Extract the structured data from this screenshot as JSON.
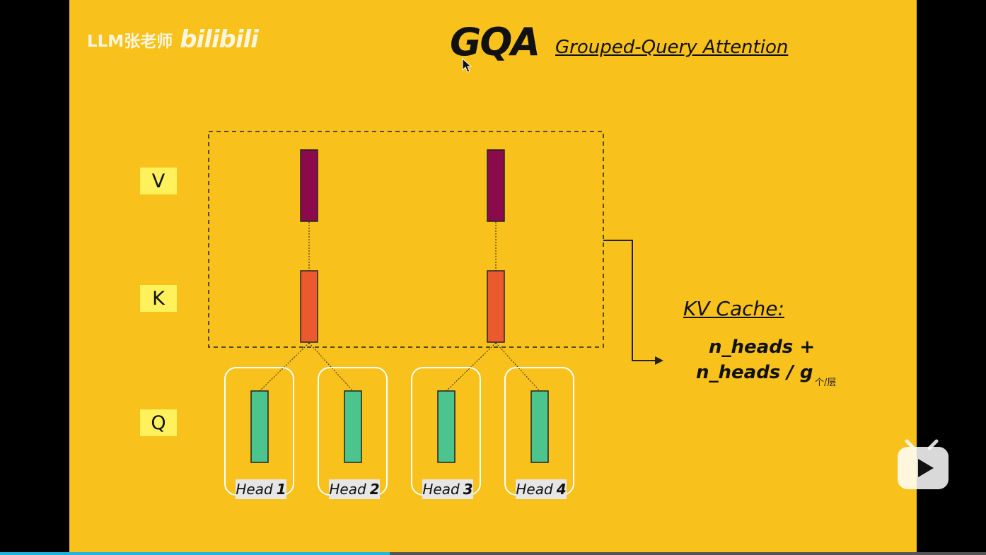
{
  "watermark": {
    "text": "LLM张老师",
    "brand": "bilibili"
  },
  "slide": {
    "title": "GQA",
    "subtitle": "Grouped-Query Attention",
    "row_labels": {
      "v": "V",
      "k": "K",
      "q": "Q"
    },
    "heads": [
      {
        "word": "Head",
        "num": "1"
      },
      {
        "word": "Head",
        "num": "2"
      },
      {
        "word": "Head",
        "num": "3"
      },
      {
        "word": "Head",
        "num": "4"
      }
    ],
    "kv_cache": {
      "title": "KV Cache:",
      "line1": "n_heads +",
      "line2": "n_heads / g",
      "unit": "个/层"
    }
  },
  "colors": {
    "background": "#f8c11b",
    "value_bar": "#8b0a4c",
    "key_bar": "#ea5a2e",
    "query_bar": "#4bc58d",
    "label_bg": "#fff15c",
    "progress": "#1fb4e0"
  },
  "icons": {
    "cursor": "mouse-pointer-icon",
    "play": "play-icon"
  },
  "player": {
    "progress": 0.395
  }
}
